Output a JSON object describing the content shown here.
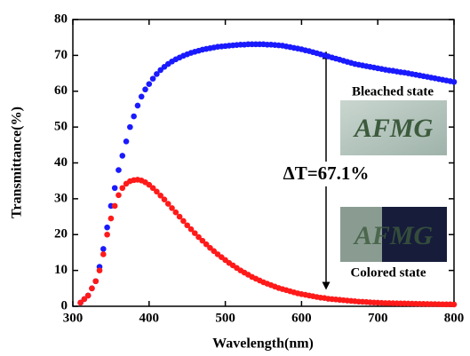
{
  "chart_data": {
    "type": "scatter",
    "xlabel": "Wavelength(nm)",
    "ylabel": "Transmittance(%)",
    "xlim": [
      300,
      800
    ],
    "xticks": [
      300,
      400,
      500,
      600,
      700,
      800
    ],
    "ylim": [
      0,
      80
    ],
    "yticks": [
      0,
      10,
      20,
      30,
      40,
      50,
      60,
      70,
      80
    ],
    "annotations": {
      "bleached": "Bleached state",
      "colored": "Colored state",
      "delta": "ΔT=67.1%",
      "photo_text": "AFMG"
    },
    "x": [
      310,
      315,
      320,
      325,
      330,
      335,
      340,
      345,
      350,
      355,
      360,
      365,
      370,
      375,
      380,
      385,
      390,
      395,
      400,
      405,
      410,
      415,
      420,
      425,
      430,
      435,
      440,
      445,
      450,
      455,
      460,
      465,
      470,
      475,
      480,
      485,
      490,
      495,
      500,
      505,
      510,
      515,
      520,
      525,
      530,
      535,
      540,
      545,
      550,
      555,
      560,
      565,
      570,
      575,
      580,
      585,
      590,
      595,
      600,
      605,
      610,
      615,
      620,
      625,
      630,
      635,
      640,
      645,
      650,
      655,
      660,
      665,
      670,
      675,
      680,
      685,
      690,
      695,
      700,
      705,
      710,
      715,
      720,
      725,
      730,
      735,
      740,
      745,
      750,
      755,
      760,
      765,
      770,
      775,
      780,
      785,
      790,
      795,
      800
    ],
    "series": [
      {
        "color": "#1a1aff",
        "values": [
          1,
          2,
          3,
          5,
          7,
          11,
          16,
          22,
          28,
          33,
          38,
          42,
          46,
          50,
          53,
          56,
          58.5,
          60.5,
          62,
          63.5,
          64.8,
          65.9,
          66.8,
          67.6,
          68.3,
          68.9,
          69.4,
          69.9,
          70.3,
          70.7,
          71,
          71.3,
          71.6,
          71.8,
          72,
          72.2,
          72.4,
          72.5,
          72.6,
          72.7,
          72.8,
          72.9,
          73,
          73,
          73.1,
          73.1,
          73.1,
          73.1,
          73.1,
          73,
          73,
          72.9,
          72.8,
          72.7,
          72.5,
          72.3,
          72.1,
          71.9,
          71.7,
          71.4,
          71.2,
          70.9,
          70.6,
          70.3,
          70,
          69.7,
          69.4,
          69.1,
          68.8,
          68.5,
          68.2,
          67.9,
          67.6,
          67.4,
          67.2,
          67,
          66.8,
          66.6,
          66.4,
          66.2,
          66,
          65.8,
          65.7,
          65.5,
          65.3,
          65.2,
          65,
          64.8,
          64.6,
          64.4,
          64.2,
          64,
          63.8,
          63.6,
          63.4,
          63.2,
          63,
          62.8,
          62.6
        ]
      },
      {
        "color": "#ff1a1a",
        "values": [
          1,
          2,
          3,
          5,
          7,
          10,
          14.5,
          20,
          24.5,
          28,
          31,
          33,
          34.2,
          34.9,
          35.2,
          35.3,
          35.1,
          34.6,
          33.9,
          33,
          32,
          30.9,
          29.8,
          28.6,
          27.4,
          26.2,
          25,
          23.8,
          22.6,
          21.5,
          20.4,
          19.3,
          18.3,
          17.3,
          16.3,
          15.4,
          14.5,
          13.7,
          12.9,
          12.1,
          11.4,
          10.7,
          10,
          9.4,
          8.8,
          8.2,
          7.7,
          7.2,
          6.7,
          6.3,
          5.9,
          5.5,
          5.1,
          4.8,
          4.5,
          4.2,
          3.9,
          3.6,
          3.4,
          3.2,
          3,
          2.8,
          2.6,
          2.4,
          2.3,
          2.1,
          2,
          1.9,
          1.8,
          1.7,
          1.6,
          1.5,
          1.4,
          1.3,
          1.25,
          1.2,
          1.1,
          1.05,
          1,
          0.95,
          0.9,
          0.88,
          0.85,
          0.82,
          0.8,
          0.78,
          0.75,
          0.72,
          0.7,
          0.68,
          0.66,
          0.64,
          0.62,
          0.6,
          0.58,
          0.56,
          0.55,
          0.53,
          0.52
        ]
      }
    ]
  }
}
